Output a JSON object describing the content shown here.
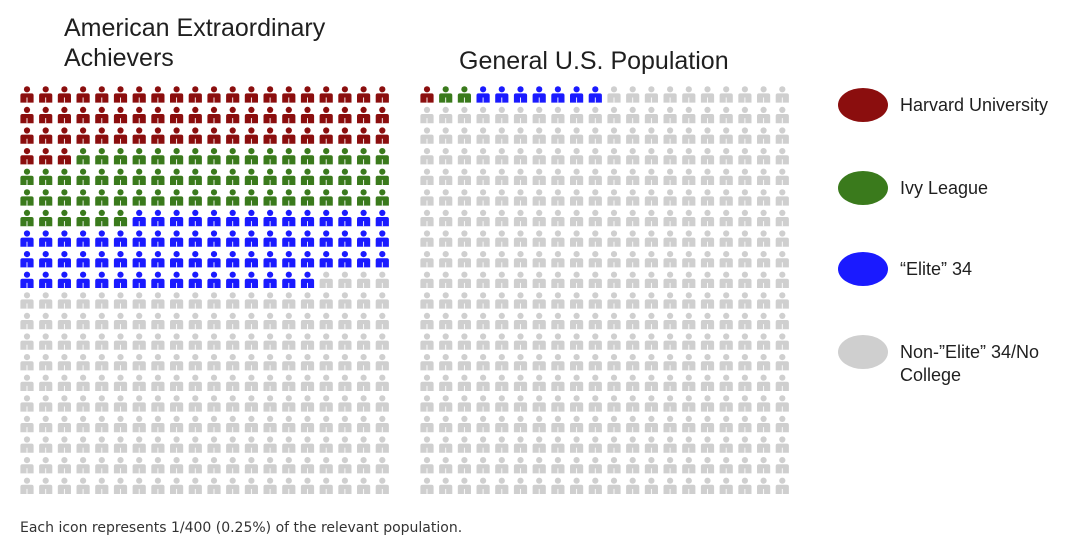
{
  "chart_data": {
    "type": "waffle",
    "grid": {
      "rows": 20,
      "columns": 20,
      "units_per_icon": "1/400 (0.25%)"
    },
    "categories": [
      {
        "key": "harvard",
        "label": "Harvard University",
        "color": "#8b0e0e"
      },
      {
        "key": "ivy",
        "label": "Ivy League",
        "color": "#3a7a1c"
      },
      {
        "key": "elite34",
        "label": "“Elite” 34",
        "color": "#1a1aff"
      },
      {
        "key": "other",
        "label": "Non-”Elite” 34/No College",
        "color": "#cfcfcf"
      }
    ],
    "panels": [
      {
        "key": "achievers",
        "title": "American Extraordinary Achievers",
        "icon_counts": {
          "harvard": 63,
          "ivy": 63,
          "elite34": 70,
          "other": 204
        }
      },
      {
        "key": "population",
        "title": "General U.S. Population",
        "icon_counts": {
          "harvard": 1,
          "ivy": 2,
          "elite34": 7,
          "other": 390
        }
      }
    ],
    "footnote": "Each icon represents 1/400 (0.25%) of the relevant population."
  }
}
